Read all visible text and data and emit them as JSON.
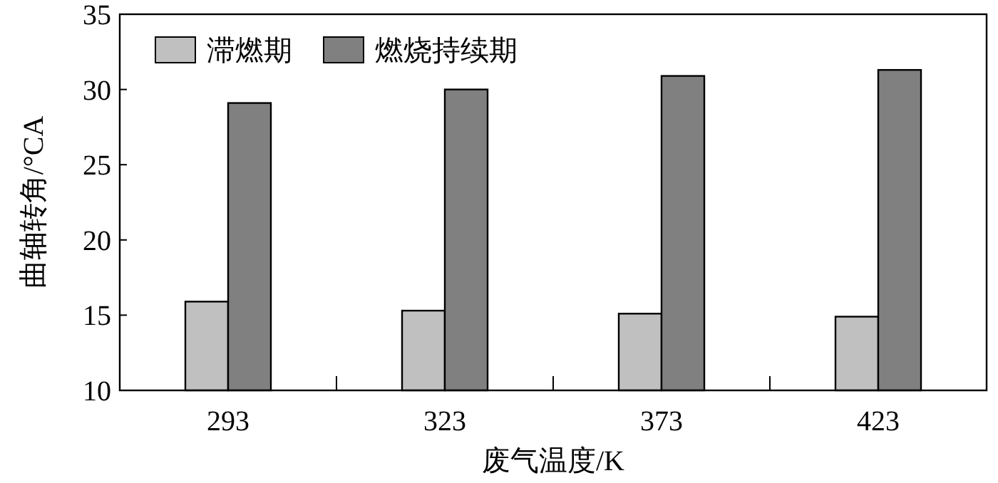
{
  "chart_data": {
    "type": "bar",
    "xlabel": "废气温度/K",
    "ylabel": "曲轴转角/°CA",
    "categories": [
      "293",
      "323",
      "373",
      "423"
    ],
    "series": [
      {
        "name": "滞燃期",
        "color": "#c0c0c0",
        "values": [
          15.9,
          15.3,
          15.1,
          14.9
        ]
      },
      {
        "name": "燃烧持续期",
        "color": "#808080",
        "values": [
          29.1,
          30.0,
          30.9,
          31.3
        ]
      }
    ],
    "ylim": [
      10,
      35
    ],
    "yticks": [
      10,
      15,
      20,
      25,
      30,
      35
    ],
    "grid": false,
    "legend": "top left"
  }
}
